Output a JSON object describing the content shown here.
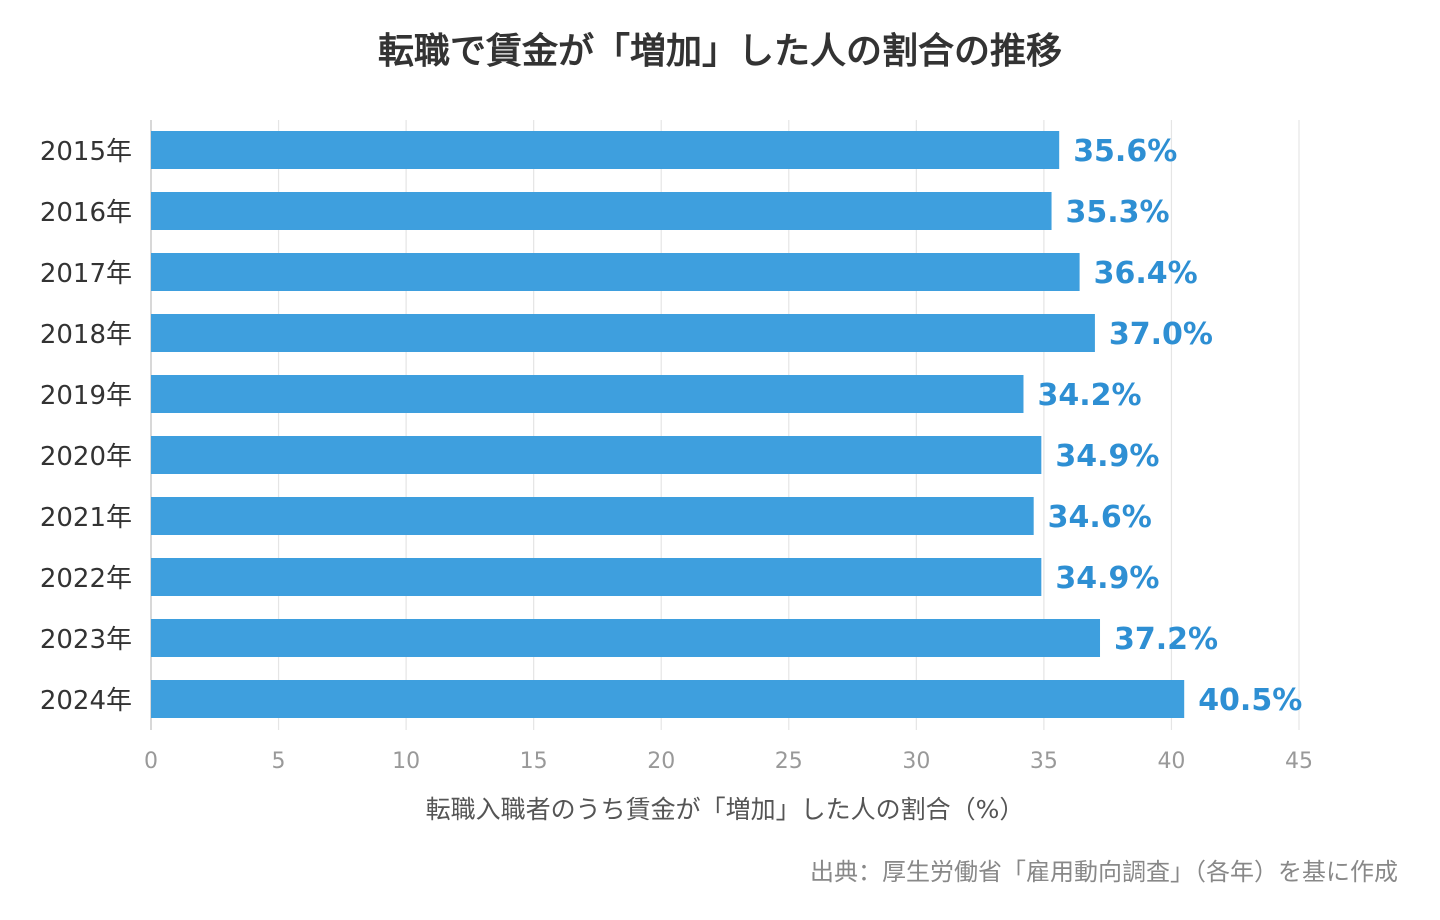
{
  "chart_data": {
    "type": "bar",
    "orientation": "horizontal",
    "title": "転職で賃金が「増加」した人の割合の推移",
    "categories": [
      "2015年",
      "2016年",
      "2017年",
      "2018年",
      "2019年",
      "2020年",
      "2021年",
      "2022年",
      "2023年",
      "2024年"
    ],
    "values": [
      35.6,
      35.3,
      36.4,
      37.0,
      34.2,
      34.9,
      34.6,
      34.9,
      37.2,
      40.5
    ],
    "value_labels": [
      "35.6%",
      "35.3%",
      "36.4%",
      "37.0%",
      "34.2%",
      "34.9%",
      "34.6%",
      "34.9%",
      "37.2%",
      "40.5%"
    ],
    "xlabel": "転職入職者のうち賃金が「増加」した人の割合（%）",
    "ylabel": "",
    "xlim": [
      0,
      45
    ],
    "ticks": [
      "0",
      "5",
      "10",
      "15",
      "20",
      "25",
      "30",
      "35",
      "40",
      "45"
    ],
    "grid": true,
    "bar_color": "#3e9fde",
    "label_color": "#2e8fd3",
    "grid_color": "#e5e5e5",
    "source": "出典：厚生労働省「雇用動向調査」（各年）を基に作成"
  }
}
